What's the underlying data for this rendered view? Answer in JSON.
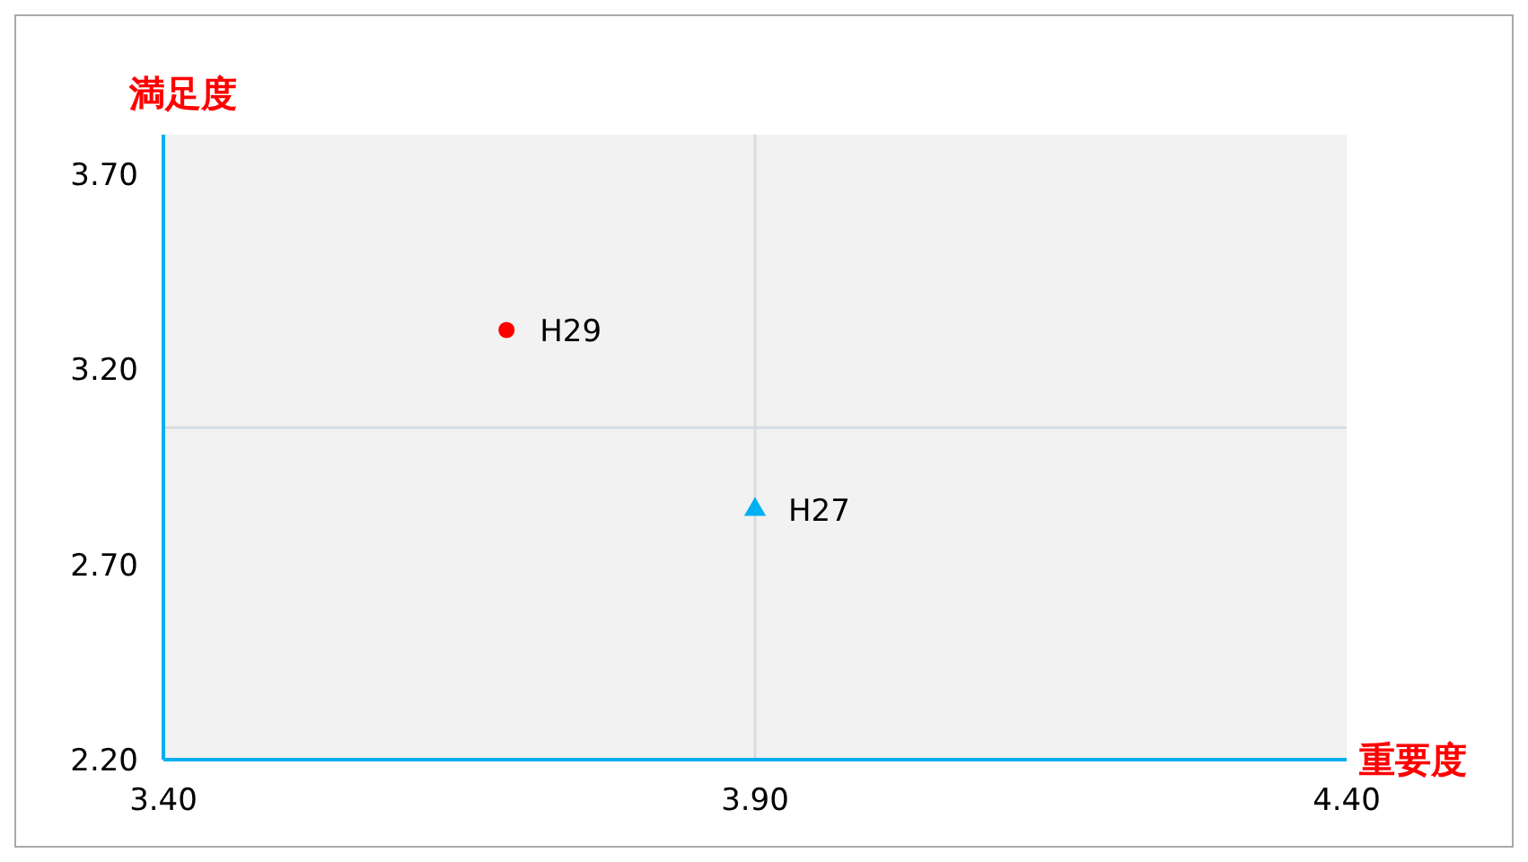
{
  "chart_data": {
    "type": "scatter",
    "xlabel": "重要度",
    "ylabel": "満足度",
    "xlim": [
      3.4,
      4.4
    ],
    "xticks": [
      {
        "value": 3.4,
        "label": "3.40"
      },
      {
        "value": 3.9,
        "label": "3.90"
      },
      {
        "value": 4.4,
        "label": "4.40"
      }
    ],
    "ylim": [
      2.2,
      3.8
    ],
    "yticks": [
      {
        "value": 2.2,
        "label": "2.20"
      },
      {
        "value": 2.7,
        "label": "2.70"
      },
      {
        "value": 3.2,
        "label": "3.20"
      },
      {
        "value": 3.7,
        "label": "3.70"
      }
    ],
    "grid": false,
    "legend": false,
    "ref_lines": [
      {
        "axis": "x",
        "value": 3.9,
        "color": "#d6dce4"
      },
      {
        "axis": "y",
        "value": 3.05,
        "color": "#d6dce4"
      }
    ],
    "series": [
      {
        "name": "H29",
        "color": "#ff0000",
        "marker": "circle",
        "x": [
          3.69
        ],
        "values": [
          3.3
        ]
      },
      {
        "name": "H27",
        "color": "#00b0f0",
        "marker": "triangle",
        "x": [
          3.9
        ],
        "values": [
          2.84
        ]
      }
    ]
  }
}
